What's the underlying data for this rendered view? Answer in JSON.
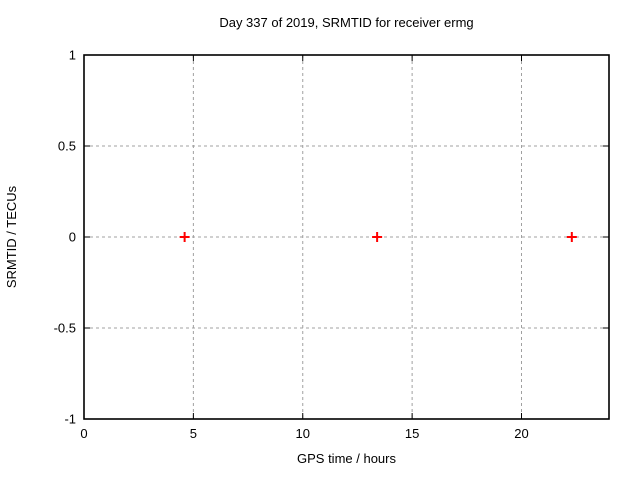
{
  "page": {
    "background": "#ffffff"
  },
  "chart_data": {
    "type": "scatter",
    "title": "Day 337 of 2019, SRMTID for receiver ermg",
    "xlabel": "GPS time / hours",
    "ylabel": "SRMTID / TECUs",
    "xlim": [
      0,
      24
    ],
    "ylim": [
      -1,
      1
    ],
    "xtick_values": [
      0,
      5,
      10,
      15,
      20
    ],
    "xtick_labels": [
      "0",
      "5",
      "10",
      "15",
      "20"
    ],
    "ytick_values": [
      -1,
      -0.5,
      0,
      0.5,
      1
    ],
    "ytick_labels": [
      "-1",
      "-0.5",
      "0",
      "0.5",
      "1"
    ],
    "grid": true,
    "grid_style": "dotted",
    "legend": "none",
    "series": [
      {
        "name": "SRMTID",
        "marker": "plus",
        "color": "#ff0000",
        "points": [
          {
            "x": 4.6,
            "y": 0
          },
          {
            "x": 13.4,
            "y": 0
          },
          {
            "x": 22.3,
            "y": 0
          }
        ]
      }
    ],
    "colors": {
      "axis": "#000000",
      "grid": "#a0a0a0",
      "text": "#000000",
      "background": "#ffffff"
    }
  }
}
